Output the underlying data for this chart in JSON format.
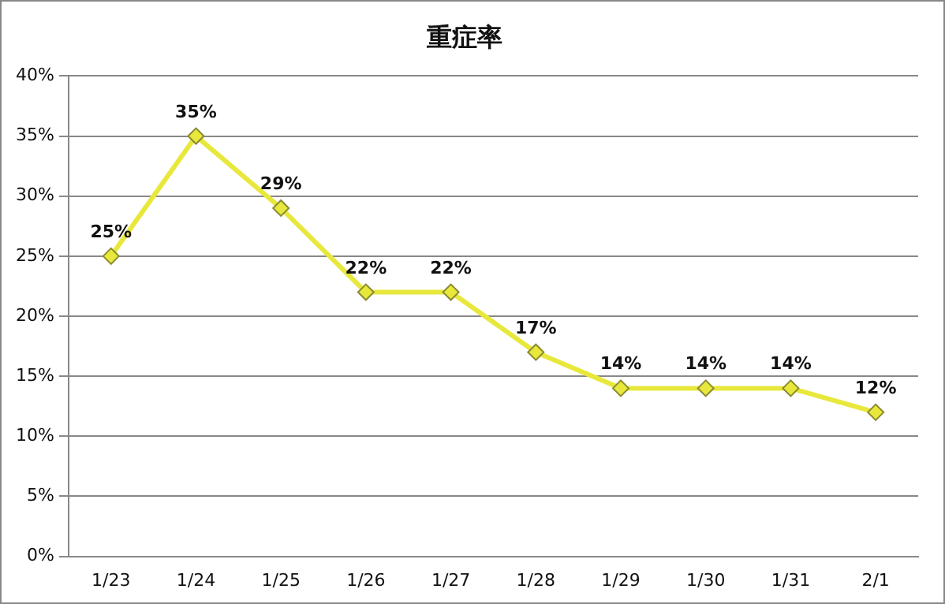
{
  "chart_data": {
    "type": "line",
    "title": "重症率",
    "categories": [
      "1/23",
      "1/24",
      "1/25",
      "1/26",
      "1/27",
      "1/28",
      "1/29",
      "1/30",
      "1/31",
      "2/1"
    ],
    "series": [
      {
        "color": "#e8e83c",
        "values": [
          25,
          35,
          29,
          22,
          22,
          17,
          14,
          14,
          14,
          12
        ],
        "value_labels": [
          "25%",
          "35%",
          "29%",
          "22%",
          "22%",
          "17%",
          "14%",
          "14%",
          "14%",
          "12%"
        ]
      }
    ],
    "ylim": [
      0,
      40
    ],
    "yticks": [
      {
        "value": 0,
        "label": "0%"
      },
      {
        "value": 5,
        "label": "5%"
      },
      {
        "value": 10,
        "label": "10%"
      },
      {
        "value": 15,
        "label": "15%"
      },
      {
        "value": 20,
        "label": "20%"
      },
      {
        "value": 25,
        "label": "25%"
      },
      {
        "value": 30,
        "label": "30%"
      },
      {
        "value": 35,
        "label": "35%"
      },
      {
        "value": 40,
        "label": "40%"
      }
    ],
    "grid": "y",
    "legend": false,
    "marker": "diamond",
    "line_style": "solid"
  }
}
